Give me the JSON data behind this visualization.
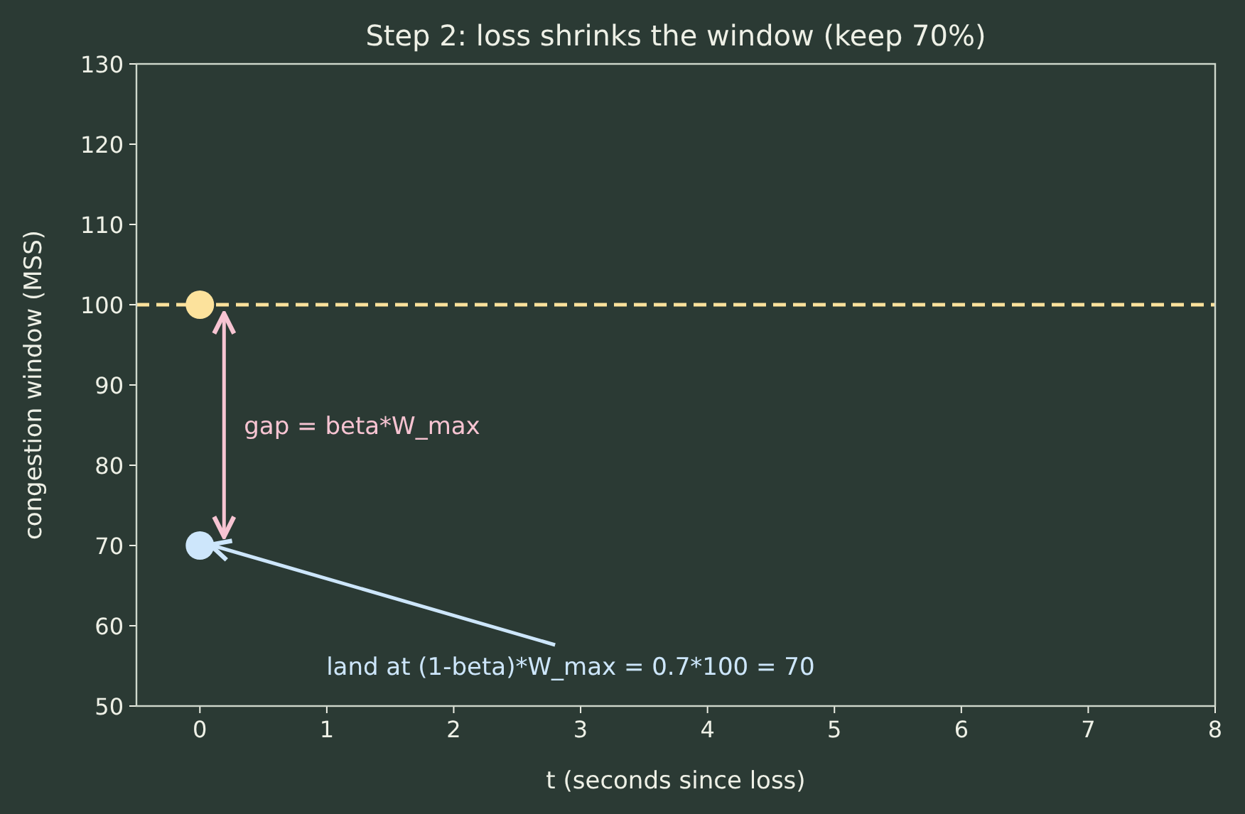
{
  "chart_data": {
    "type": "scatter",
    "title": "Step 2: loss shrinks the window (keep 70%)",
    "xlabel": "t  (seconds since loss)",
    "ylabel": "congestion window  (MSS)",
    "x": [
      0,
      0
    ],
    "values": [
      100,
      70
    ],
    "colors": [
      "#fce29c",
      "#cde6fb"
    ],
    "xlim": [
      -0.5,
      8
    ],
    "xticks": [
      0,
      1,
      2,
      3,
      4,
      5,
      6,
      7,
      8
    ],
    "ylim": [
      50,
      130
    ],
    "yticks": [
      50,
      60,
      70,
      80,
      90,
      100,
      110,
      120,
      130
    ],
    "ref_lines": [
      {
        "axis": "y",
        "value": 100,
        "color": "#fce29c",
        "line_style": "dashed"
      }
    ],
    "annotations": [
      "gap = beta*W_max",
      {
        "text": "land at (1-beta)*W_max = 0.7*100 = 70",
        "x": 0.1,
        "y": 70
      }
    ],
    "marker": "circle"
  }
}
